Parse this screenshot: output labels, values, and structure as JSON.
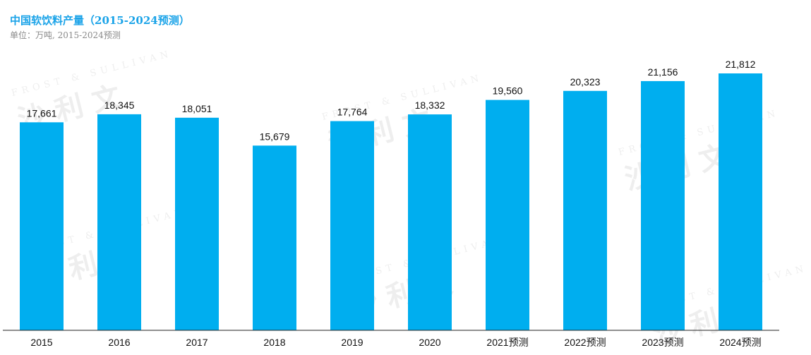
{
  "header": {
    "title": "中国软饮料产量（2015-2024预测）",
    "subtitle": "单位：万吨, 2015-2024预测"
  },
  "watermark": {
    "latin": "FROST & SULLIVAN",
    "cn": "沙利文"
  },
  "colors": {
    "bar": "#00aeef",
    "title": "#1aa3e8",
    "axis": "#222222"
  },
  "chart_data": {
    "type": "bar",
    "title": "中国软饮料产量（2015-2024预测）",
    "subtitle": "单位：万吨, 2015-2024预测",
    "xlabel": "",
    "ylabel": "",
    "categories": [
      "2015",
      "2016",
      "2017",
      "2018",
      "2019",
      "2020",
      "2021预测",
      "2022预测",
      "2023预测",
      "2024预测"
    ],
    "values": [
      17661,
      18345,
      18051,
      15679,
      17764,
      18332,
      19560,
      20323,
      21156,
      21812
    ],
    "value_labels": [
      "17,661",
      "18,345",
      "18,051",
      "15,679",
      "17,764",
      "18,332",
      "19,560",
      "20,323",
      "21,156",
      "21,812"
    ],
    "ylim": [
      0,
      21812
    ],
    "grid": false,
    "legend": "none"
  }
}
